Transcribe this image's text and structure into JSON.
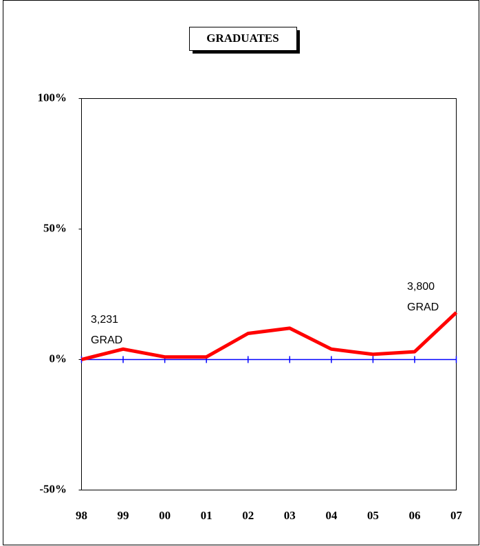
{
  "chart_data": {
    "type": "line",
    "title": "GRADUATES",
    "categories": [
      "98",
      "99",
      "00",
      "01",
      "02",
      "03",
      "04",
      "05",
      "06",
      "07"
    ],
    "series": [
      {
        "name": "Graduates",
        "color": "#ff0000",
        "values": [
          0,
          4,
          1,
          1,
          10,
          12,
          4,
          2,
          3,
          18
        ]
      }
    ],
    "ylim": [
      -50,
      100
    ],
    "yticks": [
      {
        "value": -50,
        "label": "-50%"
      },
      {
        "value": 0,
        "label": "0%"
      },
      {
        "value": 50,
        "label": "50%"
      },
      {
        "value": 100,
        "label": "100%"
      }
    ],
    "zero_line_color": "#0000ff",
    "annotations": [
      {
        "lines": [
          "3,231",
          "GRAD"
        ]
      },
      {
        "lines": [
          "3,800",
          "GRAD"
        ]
      }
    ]
  }
}
